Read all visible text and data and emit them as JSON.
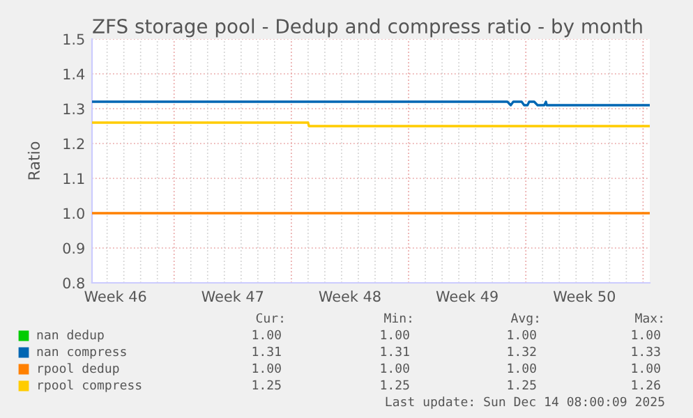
{
  "chart_data": {
    "type": "line",
    "title": "ZFS storage pool - Dedup and compress ratio - by month",
    "ylabel": "Ratio",
    "xlim": [
      "2025-11-12T02:24",
      "2025-12-15T09:36"
    ],
    "ylim": [
      0.8,
      1.5
    ],
    "yticks": [
      0.8,
      0.9,
      {
        "value": 1,
        "label": "1.0"
      },
      1.1,
      1.2,
      1.3,
      1.4,
      1.5
    ],
    "xticks": [
      {
        "value": "2025-11-13T12:00",
        "label": "Week 46"
      },
      {
        "value": "2025-11-20T12:00",
        "label": "Week 47"
      },
      {
        "value": "2025-11-27T12:00",
        "label": "Week 48"
      },
      {
        "value": "2025-12-04T12:00",
        "label": "Week 49"
      },
      {
        "value": "2025-12-11T12:00",
        "label": "Week 50"
      },
      {
        "value": "2025-11-13",
        "label": null
      },
      {
        "value": "2025-11-14",
        "label": null
      },
      {
        "value": "2025-11-15",
        "label": null
      },
      {
        "value": "2025-11-16",
        "label": null
      },
      {
        "value": "2025-11-17",
        "label": null
      },
      {
        "value": "2025-11-18",
        "label": null
      },
      {
        "value": "2025-11-19",
        "label": null
      },
      {
        "value": "2025-11-20",
        "label": null
      },
      {
        "value": "2025-11-21",
        "label": null
      },
      {
        "value": "2025-11-22",
        "label": null
      },
      {
        "value": "2025-11-23",
        "label": null
      },
      {
        "value": "2025-11-24",
        "label": null
      },
      {
        "value": "2025-11-25",
        "label": null
      },
      {
        "value": "2025-11-26",
        "label": null
      },
      {
        "value": "2025-11-27",
        "label": null
      },
      {
        "value": "2025-11-28",
        "label": null
      },
      {
        "value": "2025-11-29",
        "label": null
      },
      {
        "value": "2025-11-30",
        "label": null
      },
      {
        "value": "2025-12-01",
        "label": null
      },
      {
        "value": "2025-12-02",
        "label": null
      },
      {
        "value": "2025-12-03",
        "label": null
      },
      {
        "value": "2025-12-04",
        "label": null
      },
      {
        "value": "2025-12-05",
        "label": null
      },
      {
        "value": "2025-12-06",
        "label": null
      },
      {
        "value": "2025-12-07",
        "label": null
      },
      {
        "value": "2025-12-08",
        "label": null
      },
      {
        "value": "2025-12-09",
        "label": null
      },
      {
        "value": "2025-12-10",
        "label": null
      },
      {
        "value": "2025-12-11",
        "label": null
      },
      {
        "value": "2025-12-12",
        "label": null
      },
      {
        "value": "2025-12-13",
        "label": null
      },
      {
        "value": "2025-12-14",
        "label": null
      },
      {
        "value": "2025-12-15",
        "label": null
      }
    ],
    "grid": true,
    "legend": "bottom",
    "series": [
      {
        "name": "nan dedup",
        "color": "#00cc00"
      },
      {
        "name": "nan compress",
        "color": "#0066b3",
        "x": [
          "2025-11-12T02:24",
          "2025-12-06T21:36",
          "2025-12-07T02:24",
          "2025-12-07T06:00",
          "2025-12-07T18:00",
          "2025-12-07T21:36",
          "2025-12-08T02:24",
          "2025-12-08T04:48",
          "2025-12-08T12:00",
          "2025-12-08T16:48",
          "2025-12-09T02:24",
          "2025-12-09T04:48",
          "2025-12-09T06:00",
          "2025-12-15T09:36"
        ],
        "values": [
          1.32,
          1.32,
          1.31,
          1.32,
          1.32,
          1.31,
          1.31,
          1.32,
          1.32,
          1.31,
          1.31,
          1.32,
          1.31,
          1.31
        ]
      },
      {
        "name": "rpool dedup",
        "color": "#ff8000",
        "x": [
          "2025-11-12T02:24",
          "2025-12-15T09:36"
        ],
        "values": [
          1.0,
          1.0
        ]
      },
      {
        "name": "rpool compress",
        "color": "#ffcc00",
        "x": [
          "2025-11-12T02:24",
          "2025-11-25T00:00",
          "2025-11-25T01:12",
          "2025-12-15T09:36"
        ],
        "values": [
          1.26,
          1.26,
          1.25,
          1.25
        ]
      }
    ],
    "annotations": [
      "Cur:",
      "Min:",
      "Avg:",
      "Max:",
      "1.00",
      "1.00",
      "1.00",
      "1.00",
      "1.31",
      "1.31",
      "1.32",
      "1.33",
      "1.00",
      "1.00",
      "1.00",
      "1.00",
      "1.25",
      "1.25",
      "1.25",
      "1.26",
      "Last update: Sun Dec 14 08:00:09 2025"
    ]
  }
}
